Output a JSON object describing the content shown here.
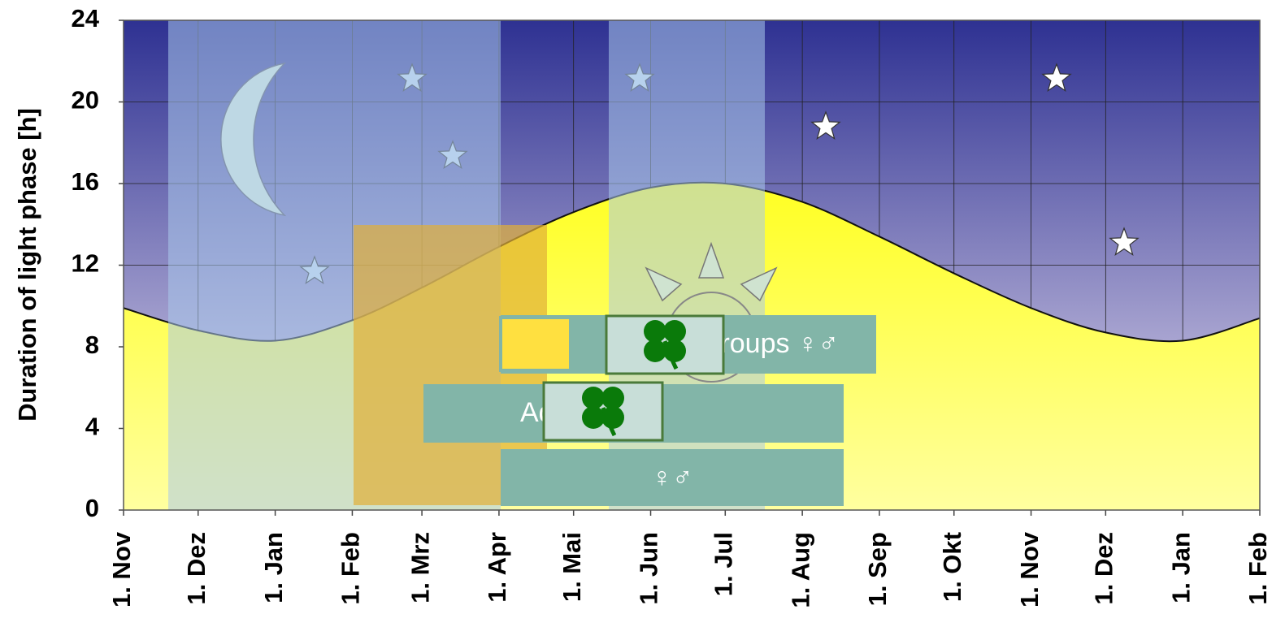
{
  "chart_data": {
    "type": "area",
    "ylabel": "Duration of light phase [h]",
    "x": [
      0,
      30,
      61,
      92,
      120,
      151,
      181,
      212,
      242,
      273,
      304,
      334,
      365,
      395,
      426,
      457
    ],
    "values": [
      9.9,
      8.8,
      8.3,
      9.3,
      10.9,
      12.9,
      14.6,
      15.8,
      16.0,
      15.1,
      13.4,
      11.6,
      9.9,
      8.7,
      8.3,
      9.4
    ],
    "color": "#ffff33",
    "xlim": [
      0,
      457
    ],
    "xticks": [
      {
        "value": 0,
        "label": "1. Nov"
      },
      {
        "value": 30,
        "label": "1. Dez"
      },
      {
        "value": 61,
        "label": "1. Jan"
      },
      {
        "value": 92,
        "label": "1. Feb"
      },
      {
        "value": 120,
        "label": "1. Mrz"
      },
      {
        "value": 151,
        "label": "1. Apr"
      },
      {
        "value": 181,
        "label": "1. Mai"
      },
      {
        "value": 212,
        "label": "1. Jun"
      },
      {
        "value": 242,
        "label": "1. Jul"
      },
      {
        "value": 273,
        "label": "1. Aug"
      },
      {
        "value": 304,
        "label": "1. Sep"
      },
      {
        "value": 334,
        "label": "1. Okt"
      },
      {
        "value": 365,
        "label": "1. Nov"
      },
      {
        "value": 395,
        "label": "1. Dez"
      },
      {
        "value": 426,
        "label": "1. Jan"
      },
      {
        "value": 457,
        "label": "1. Feb"
      }
    ],
    "ylim": [
      0,
      24
    ],
    "yticks": [
      0,
      4,
      8,
      12,
      16,
      20,
      24
    ],
    "grid": true,
    "annotations": [
      "Groups ♀♂",
      "Adults ♀♂",
      "♀♂"
    ]
  }
}
